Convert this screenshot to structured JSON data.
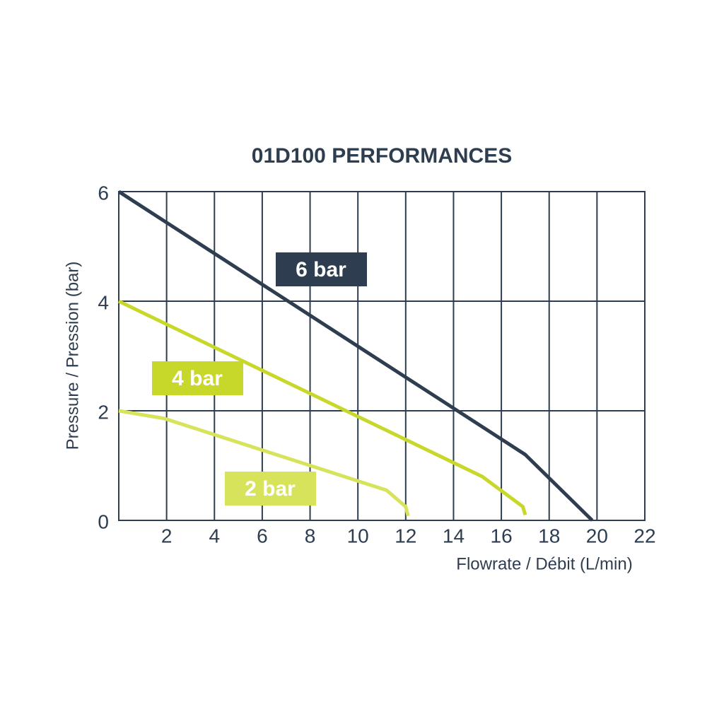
{
  "chart_data": {
    "type": "line",
    "title": "01D100 PERFORMANCES",
    "x_label": "Flowrate / Débit (L/min)",
    "y_label": "Pressure / Pression (bar)",
    "xlim": [
      0,
      22
    ],
    "xticks": [
      2,
      4,
      6,
      8,
      10,
      12,
      14,
      16,
      18,
      20,
      22
    ],
    "ylim": [
      0,
      6
    ],
    "yticks": [
      0,
      2,
      4,
      6
    ],
    "grid": true,
    "series": [
      {
        "name": "6 bar",
        "color": "#2e3e50",
        "x": [
          0,
          17,
          19.8
        ],
        "values": [
          6,
          1.2,
          0
        ]
      },
      {
        "name": "4 bar",
        "color": "#c8d82a",
        "x": [
          0,
          15.2,
          16.9,
          17
        ],
        "values": [
          4,
          0.8,
          0.25,
          0.1
        ]
      },
      {
        "name": "2 bar",
        "color": "#d8e35c",
        "x": [
          0,
          1.9,
          11.2,
          12,
          12.1
        ],
        "values": [
          2,
          1.86,
          0.55,
          0.25,
          0.08
        ]
      }
    ]
  }
}
